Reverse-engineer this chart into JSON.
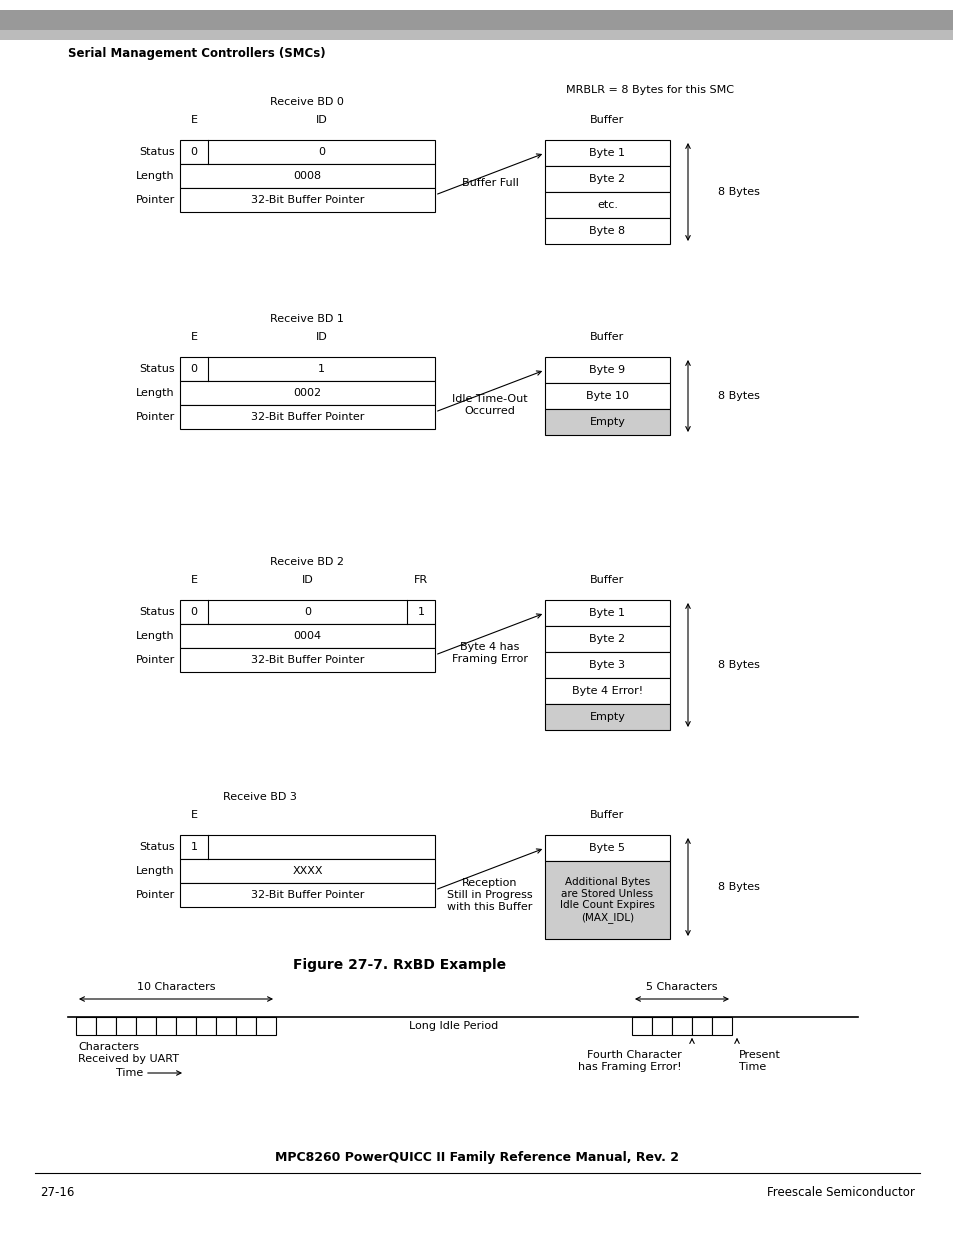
{
  "bg_color": "#ffffff",
  "header_bar_color": "#aaaaaa",
  "header_text": "Serial Management Controllers (SMCs)",
  "figure_caption": "Figure 27-7. RxBD Example",
  "footer_text": "MPC8260 PowerQUICC II Family Reference Manual, Rev. 2",
  "footer_left": "27-16",
  "footer_right": "Freescale Semiconductor",
  "gray_fill": "#cccccc",
  "top_label": "MRBLR = 8 Bytes for this SMC"
}
